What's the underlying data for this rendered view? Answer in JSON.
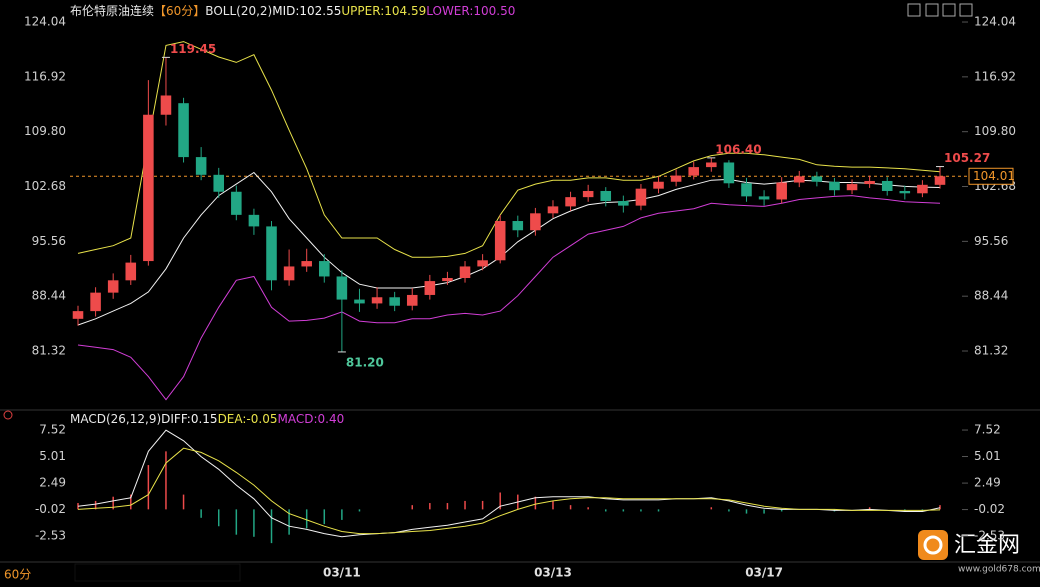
{
  "chart_data": {
    "type": "candlestick",
    "title": "布伦特原油连续",
    "period": "【60分】",
    "indicator": "BOLL(20,2)",
    "period_tab": "60分",
    "logo": {
      "name": "汇金网",
      "url": "www.gold678.com"
    },
    "categories": [
      null,
      null,
      null,
      null,
      null,
      null,
      null,
      null,
      null,
      null,
      null,
      null,
      null,
      null,
      null,
      "03/11",
      null,
      null,
      null,
      null,
      null,
      null,
      null,
      null,
      null,
      null,
      null,
      "03/13",
      null,
      null,
      null,
      null,
      null,
      null,
      null,
      null,
      null,
      null,
      null,
      "03/17",
      null,
      null,
      null,
      null,
      null,
      null,
      null,
      null,
      null,
      null
    ],
    "open": [
      85.5,
      86.5,
      88.9,
      90.5,
      93.0,
      112.0,
      113.5,
      106.5,
      104.2,
      102.0,
      99.0,
      97.5,
      90.5,
      92.3,
      93.0,
      91.0,
      88.0,
      87.5,
      88.3,
      87.2,
      88.6,
      90.4,
      90.8,
      92.3,
      93.1,
      98.2,
      97.0,
      99.2,
      100.1,
      101.3,
      102.1,
      100.8,
      100.2,
      102.4,
      103.3,
      104.1,
      105.2,
      105.8,
      103.1,
      101.4,
      101.0,
      103.2,
      104.0,
      103.3,
      102.2,
      103.0,
      103.4,
      102.1,
      101.8,
      102.9
    ],
    "high": [
      87.2,
      89.6,
      91.4,
      93.8,
      116.5,
      119.45,
      114.2,
      107.8,
      105.1,
      102.8,
      99.8,
      98.2,
      94.5,
      94.6,
      93.9,
      91.8,
      89.4,
      89.6,
      89.0,
      89.5,
      91.2,
      91.6,
      93.0,
      93.9,
      99.0,
      98.9,
      99.9,
      100.9,
      102.0,
      102.9,
      102.6,
      101.5,
      103.0,
      104.0,
      104.9,
      105.9,
      106.4,
      106.1,
      103.8,
      102.2,
      103.9,
      104.7,
      104.6,
      103.8,
      103.6,
      104.1,
      103.9,
      102.8,
      103.5,
      105.27
    ],
    "low": [
      84.6,
      85.8,
      88.1,
      89.9,
      92.4,
      110.6,
      105.8,
      103.5,
      101.2,
      98.3,
      96.4,
      89.2,
      89.8,
      91.6,
      90.2,
      81.2,
      86.4,
      86.8,
      86.5,
      86.6,
      88.0,
      89.9,
      90.2,
      91.8,
      92.7,
      96.1,
      96.3,
      98.6,
      99.5,
      100.7,
      100.1,
      99.3,
      99.6,
      101.8,
      102.7,
      103.6,
      104.6,
      102.5,
      100.7,
      100.2,
      100.5,
      102.6,
      102.7,
      101.5,
      101.7,
      102.5,
      101.5,
      101.0,
      101.3,
      102.4
    ],
    "close": [
      86.5,
      88.9,
      90.5,
      92.8,
      112.0,
      114.5,
      106.5,
      104.2,
      102.0,
      99.0,
      97.5,
      90.5,
      92.3,
      93.0,
      91.0,
      88.0,
      87.5,
      88.3,
      87.2,
      88.6,
      90.4,
      90.8,
      92.3,
      93.1,
      98.2,
      97.0,
      99.2,
      100.1,
      101.3,
      102.1,
      100.8,
      100.2,
      102.4,
      103.3,
      104.1,
      105.2,
      105.8,
      103.1,
      101.4,
      101.0,
      103.2,
      104.0,
      103.3,
      102.2,
      103.0,
      103.4,
      102.1,
      101.8,
      102.9,
      104.01
    ],
    "up_color": "#ee4b4b",
    "down_color": "#22a785",
    "ylim": [
      74.31,
      126.25
    ],
    "yticks": [
      124.04,
      116.92,
      {
        "value": 109.8,
        "label": "109.80"
      },
      102.68,
      95.56,
      88.44,
      81.32
    ],
    "bands": [
      {
        "label": "MID:102.55",
        "color": "#f2f2f2",
        "values": [
          84.7,
          85.5,
          86.5,
          87.5,
          89.0,
          92.0,
          96.0,
          99.0,
          101.5,
          103.0,
          104.5,
          102.0,
          98.5,
          96.0,
          93.5,
          91.5,
          90.0,
          89.5,
          89.5,
          89.5,
          89.8,
          90.2,
          91.0,
          92.0,
          93.5,
          95.5,
          97.0,
          98.5,
          99.5,
          100.3,
          100.6,
          100.7,
          101.0,
          101.5,
          102.3,
          102.9,
          103.5,
          103.6,
          103.2,
          103.0,
          103.2,
          103.5,
          103.4,
          103.2,
          103.2,
          103.1,
          102.9,
          102.7,
          102.6,
          102.55
        ]
      },
      {
        "label": "UPPER:104.59",
        "color": "#e8e24a",
        "values": [
          94.0,
          94.5,
          95.0,
          96.0,
          108.7,
          121.0,
          121.5,
          120.5,
          119.5,
          118.8,
          119.8,
          115.2,
          110.0,
          105.0,
          99.0,
          96.0,
          96.0,
          96.0,
          94.5,
          93.5,
          93.5,
          93.6,
          94.0,
          95.0,
          99.0,
          102.2,
          103.0,
          103.5,
          103.5,
          103.8,
          103.8,
          103.5,
          103.5,
          104.0,
          105.0,
          106.0,
          106.7,
          107.0,
          107.0,
          106.8,
          106.5,
          106.2,
          105.5,
          105.3,
          105.2,
          105.2,
          105.1,
          105.0,
          104.8,
          104.59
        ]
      },
      {
        "label": "LOWER:100.50",
        "color": "#d13ed6",
        "values": [
          82.1,
          81.8,
          81.5,
          80.5,
          78.0,
          75.0,
          78.0,
          83.0,
          87.0,
          90.5,
          91.0,
          87.0,
          85.2,
          85.3,
          85.6,
          86.4,
          85.2,
          85.0,
          85.0,
          85.5,
          85.5,
          86.0,
          86.2,
          86.0,
          86.5,
          88.5,
          91.0,
          93.5,
          95.0,
          96.5,
          97.0,
          97.5,
          98.6,
          99.2,
          99.5,
          99.8,
          100.5,
          100.3,
          100.2,
          100.1,
          100.5,
          101.0,
          101.2,
          101.4,
          101.5,
          101.2,
          101.0,
          100.7,
          100.6,
          100.5
        ]
      }
    ],
    "annotations": [
      {
        "label": "119.45",
        "value": 119.45
      },
      {
        "label": "81.20",
        "value": 81.2
      },
      {
        "label": "106.40",
        "value": 106.4
      },
      {
        "label": "105.27",
        "value": 105.27
      }
    ],
    "current_color": "#f0962a",
    "macd": {
      "title": "MACD(26,12,9)",
      "ylim": [
        -4.8,
        9.23
      ],
      "yticks": [
        7.52,
        5.01,
        2.49,
        -0.02,
        -2.53
      ],
      "lines": [
        {
          "label": "DIFF:0.15",
          "color": "#f2f2f2",
          "values": [
            0.3,
            0.5,
            0.8,
            1.1,
            5.5,
            7.5,
            6.5,
            5.0,
            3.8,
            2.3,
            1.0,
            -0.8,
            -1.6,
            -1.9,
            -2.3,
            -2.6,
            -2.4,
            -2.3,
            -2.2,
            -1.9,
            -1.7,
            -1.5,
            -1.2,
            -0.9,
            0.3,
            0.7,
            1.1,
            1.2,
            1.2,
            1.2,
            1.0,
            0.9,
            0.9,
            0.9,
            1.0,
            1.0,
            1.1,
            0.8,
            0.4,
            0.1,
            0.0,
            0.0,
            0.0,
            -0.1,
            -0.1,
            0.0,
            -0.1,
            -0.2,
            -0.2,
            0.15
          ]
        },
        {
          "label": "DEA:-0.05",
          "color": "#e8e24a",
          "values": [
            0.0,
            0.1,
            0.2,
            0.4,
            1.4,
            4.4,
            5.8,
            5.4,
            4.6,
            3.5,
            2.3,
            0.8,
            -0.4,
            -1.0,
            -1.6,
            -2.1,
            -2.3,
            -2.3,
            -2.2,
            -2.1,
            -2.0,
            -1.8,
            -1.6,
            -1.3,
            -0.6,
            0.0,
            0.5,
            0.8,
            1.0,
            1.1,
            1.1,
            1.0,
            1.0,
            1.0,
            1.0,
            1.0,
            1.0,
            0.9,
            0.6,
            0.3,
            0.1,
            0.0,
            0.0,
            0.0,
            -0.1,
            -0.1,
            -0.1,
            -0.1,
            -0.1,
            -0.05
          ]
        }
      ],
      "histogram": {
        "label": "MACD:0.40",
        "color": "#d13ed6",
        "values": [
          0.6,
          0.8,
          1.2,
          1.4,
          4.2,
          5.5,
          1.4,
          -0.8,
          -1.6,
          -2.4,
          -2.6,
          -3.2,
          -2.4,
          -1.8,
          -1.4,
          -1.0,
          -0.2,
          0.0,
          0.0,
          0.4,
          0.6,
          0.6,
          0.8,
          0.8,
          1.6,
          1.4,
          1.2,
          0.8,
          0.4,
          0.2,
          -0.2,
          -0.2,
          -0.2,
          -0.2,
          0.0,
          0.0,
          0.2,
          -0.2,
          -0.4,
          -0.4,
          -0.2,
          0.0,
          0.0,
          -0.2,
          0.0,
          0.2,
          0.0,
          -0.2,
          -0.2,
          0.4
        ]
      }
    }
  }
}
